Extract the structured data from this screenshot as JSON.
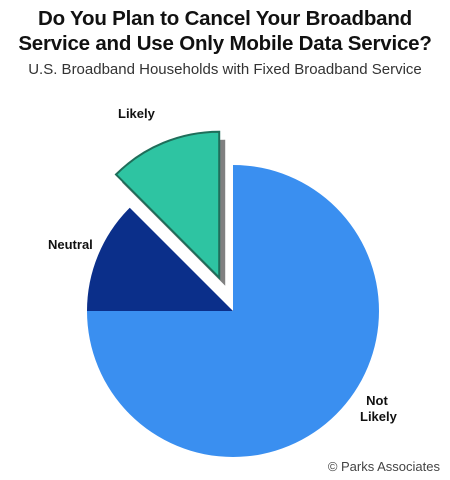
{
  "chart_data": {
    "type": "pie",
    "title": "Do You Plan to Cancel Your Broadband Service and Use Only Mobile Data Service?",
    "subtitle": "U.S. Broadband Households with Fixed Broadband Service",
    "categories": [
      "Not Likely",
      "Neutral",
      "Likely"
    ],
    "values": [
      75,
      12.5,
      12.5
    ],
    "colors": [
      "#3a8ff0",
      "#0b2f8a",
      "#2ec4a2"
    ],
    "exploded": "Likely",
    "label_lines": {
      "likely": "Likely",
      "neutral": "Neutral",
      "not_likely_1": "Not",
      "not_likely_2": "Likely"
    }
  },
  "title_lines": {
    "line1": "Do You Plan to Cancel Your Broadband",
    "line2": "Service and Use Only Mobile Data Service?"
  },
  "copyright": "© Parks Associates"
}
